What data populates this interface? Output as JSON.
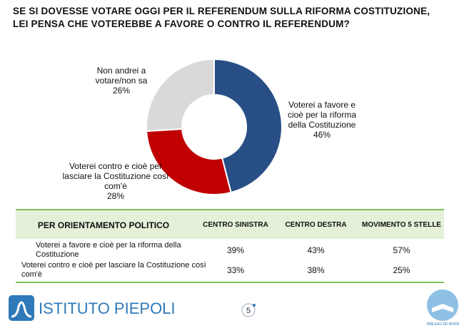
{
  "chart_data": {
    "type": "pie",
    "title_lines": [
      "SE SI DOVESSE VOTARE OGGI PER IL REFERENDUM SULLA RIFORMA COSTITUZIONE,",
      "LEI PENSA CHE VOTEREBBE A FAVORE O CONTRO IL REFERENDUM?"
    ],
    "categories": [
      "Voterei a favore e cioè per la riforma della Costituzione",
      "Voterei contro e cioè per lasciare la Costituzione così com'è",
      "Non andrei a votare/non sa"
    ],
    "values": [
      46,
      28,
      26
    ],
    "value_labels": [
      "46%",
      "28%",
      "26%"
    ],
    "colors": [
      "#284f85",
      "#c00000",
      "#d9d9d9"
    ]
  },
  "table": {
    "header": [
      "PER ORIENTAMENTO POLITICO",
      "CENTRO SINISTRA",
      "CENTRO DESTRA",
      "MOVIMENTO 5 STELLE"
    ],
    "rows": [
      [
        "Voterei a favore e cioè per la riforma della Costituzione",
        "39%",
        "43%",
        "57%"
      ],
      [
        "Voterei contro e cioè per lasciare la Costituzione così com'è",
        "33%",
        "38%",
        "25%"
      ]
    ]
  },
  "footer": {
    "logo": "ISTITUTO PIEPOLI",
    "page": "5",
    "badge": "TABLEAU DE BORD"
  }
}
